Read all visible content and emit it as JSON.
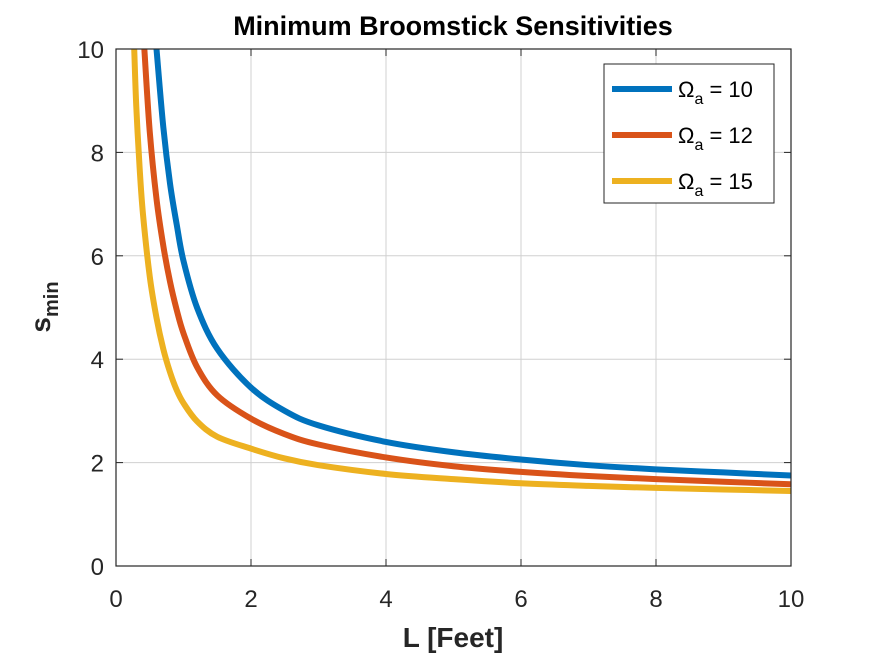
{
  "chart_data": {
    "type": "line",
    "title": "Minimum Broomstick Sensitivities",
    "xlabel": "L [Feet]",
    "ylabel": {
      "main": "s",
      "sub": "min"
    },
    "xlim": [
      0,
      10
    ],
    "ylim": [
      0,
      10
    ],
    "xticks": [
      0,
      2,
      4,
      6,
      8,
      10
    ],
    "yticks": [
      0,
      2,
      4,
      6,
      8,
      10
    ],
    "grid": true,
    "legend_position": "top-right",
    "series": [
      {
        "name": {
          "symbol": "Ω",
          "sub": "a",
          "rest": " = 10"
        },
        "color": "#0072BD",
        "x": [
          0.6,
          0.7,
          0.8,
          0.9,
          1.0,
          1.2,
          1.5,
          2.0,
          2.5,
          3.0,
          4.0,
          5.0,
          6.0,
          7.0,
          8.0,
          9.0,
          10.0
        ],
        "y": [
          10.0,
          8.5,
          7.4,
          6.6,
          5.9,
          5.0,
          4.2,
          3.45,
          3.0,
          2.72,
          2.4,
          2.2,
          2.06,
          1.95,
          1.87,
          1.81,
          1.75
        ]
      },
      {
        "name": {
          "symbol": "Ω",
          "sub": "a",
          "rest": " = 12"
        },
        "color": "#D95319",
        "x": [
          0.42,
          0.5,
          0.6,
          0.7,
          0.8,
          0.9,
          1.0,
          1.2,
          1.5,
          2.0,
          2.5,
          3.0,
          4.0,
          5.0,
          6.0,
          7.0,
          8.0,
          9.0,
          10.0
        ],
        "y": [
          10.0,
          8.4,
          7.1,
          6.2,
          5.5,
          4.95,
          4.5,
          3.85,
          3.3,
          2.85,
          2.55,
          2.35,
          2.1,
          1.93,
          1.82,
          1.74,
          1.68,
          1.63,
          1.58
        ]
      },
      {
        "name": {
          "symbol": "Ω",
          "sub": "a",
          "rest": " = 15"
        },
        "color": "#EDB120",
        "x": [
          0.27,
          0.3,
          0.35,
          0.4,
          0.5,
          0.6,
          0.7,
          0.8,
          0.9,
          1.0,
          1.2,
          1.5,
          2.0,
          2.5,
          3.0,
          4.0,
          5.0,
          6.0,
          7.0,
          8.0,
          9.0,
          10.0
        ],
        "y": [
          10.0,
          8.9,
          7.7,
          6.8,
          5.6,
          4.8,
          4.2,
          3.75,
          3.4,
          3.15,
          2.8,
          2.5,
          2.27,
          2.08,
          1.95,
          1.78,
          1.68,
          1.6,
          1.55,
          1.51,
          1.48,
          1.45
        ]
      }
    ]
  }
}
